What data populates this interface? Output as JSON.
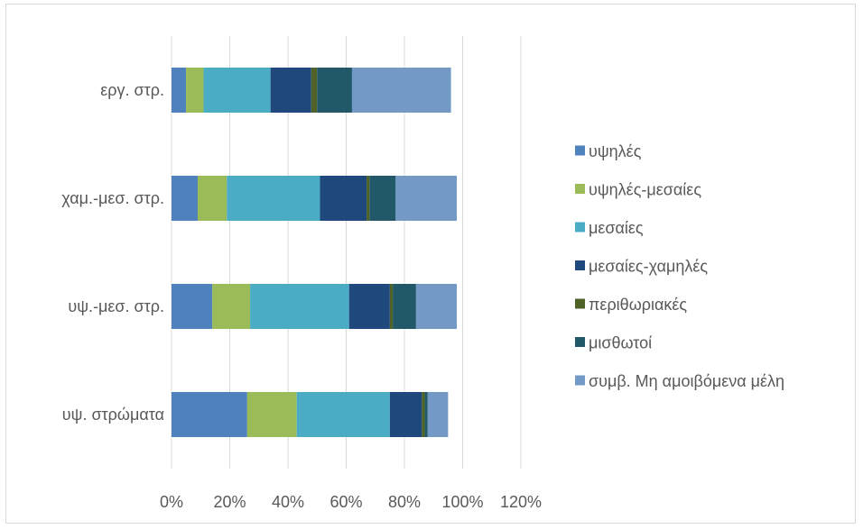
{
  "chart_data": {
    "type": "bar",
    "orientation": "horizontal",
    "stacked": true,
    "categories": [
      "υψ. στρώματα",
      "υψ.-μεσ. στρ.",
      "χαμ.-μεσ. στρ.",
      "εργ. στρ."
    ],
    "x_ticks": [
      "0%",
      "20%",
      "40%",
      "60%",
      "80%",
      "100%",
      "120%"
    ],
    "xlim": [
      0,
      120
    ],
    "grid": "vertical",
    "legend_position": "right",
    "series": [
      {
        "name": "υψηλές",
        "color": "#4f81bd",
        "values": [
          26,
          14,
          9,
          5
        ]
      },
      {
        "name": "υψηλές-μεσαίες",
        "color": "#9bbb59",
        "values": [
          17,
          13,
          10,
          6
        ]
      },
      {
        "name": "μεσαίες",
        "color": "#4bacc6",
        "values": [
          32,
          34,
          32,
          23
        ]
      },
      {
        "name": "μεσαίες-χαμηλές",
        "color": "#1f497d",
        "values": [
          11,
          14,
          16,
          14
        ]
      },
      {
        "name": "περιθωριακές",
        "color": "#4f6228",
        "values": [
          1,
          1,
          1,
          2
        ]
      },
      {
        "name": "μισθωτοί",
        "color": "#215968",
        "values": [
          1,
          8,
          9,
          12
        ]
      },
      {
        "name": "συμβ. Μη αμοιβόμενα μέλη",
        "color": "#7399c6",
        "values": [
          7,
          14,
          21,
          34
        ]
      }
    ]
  }
}
